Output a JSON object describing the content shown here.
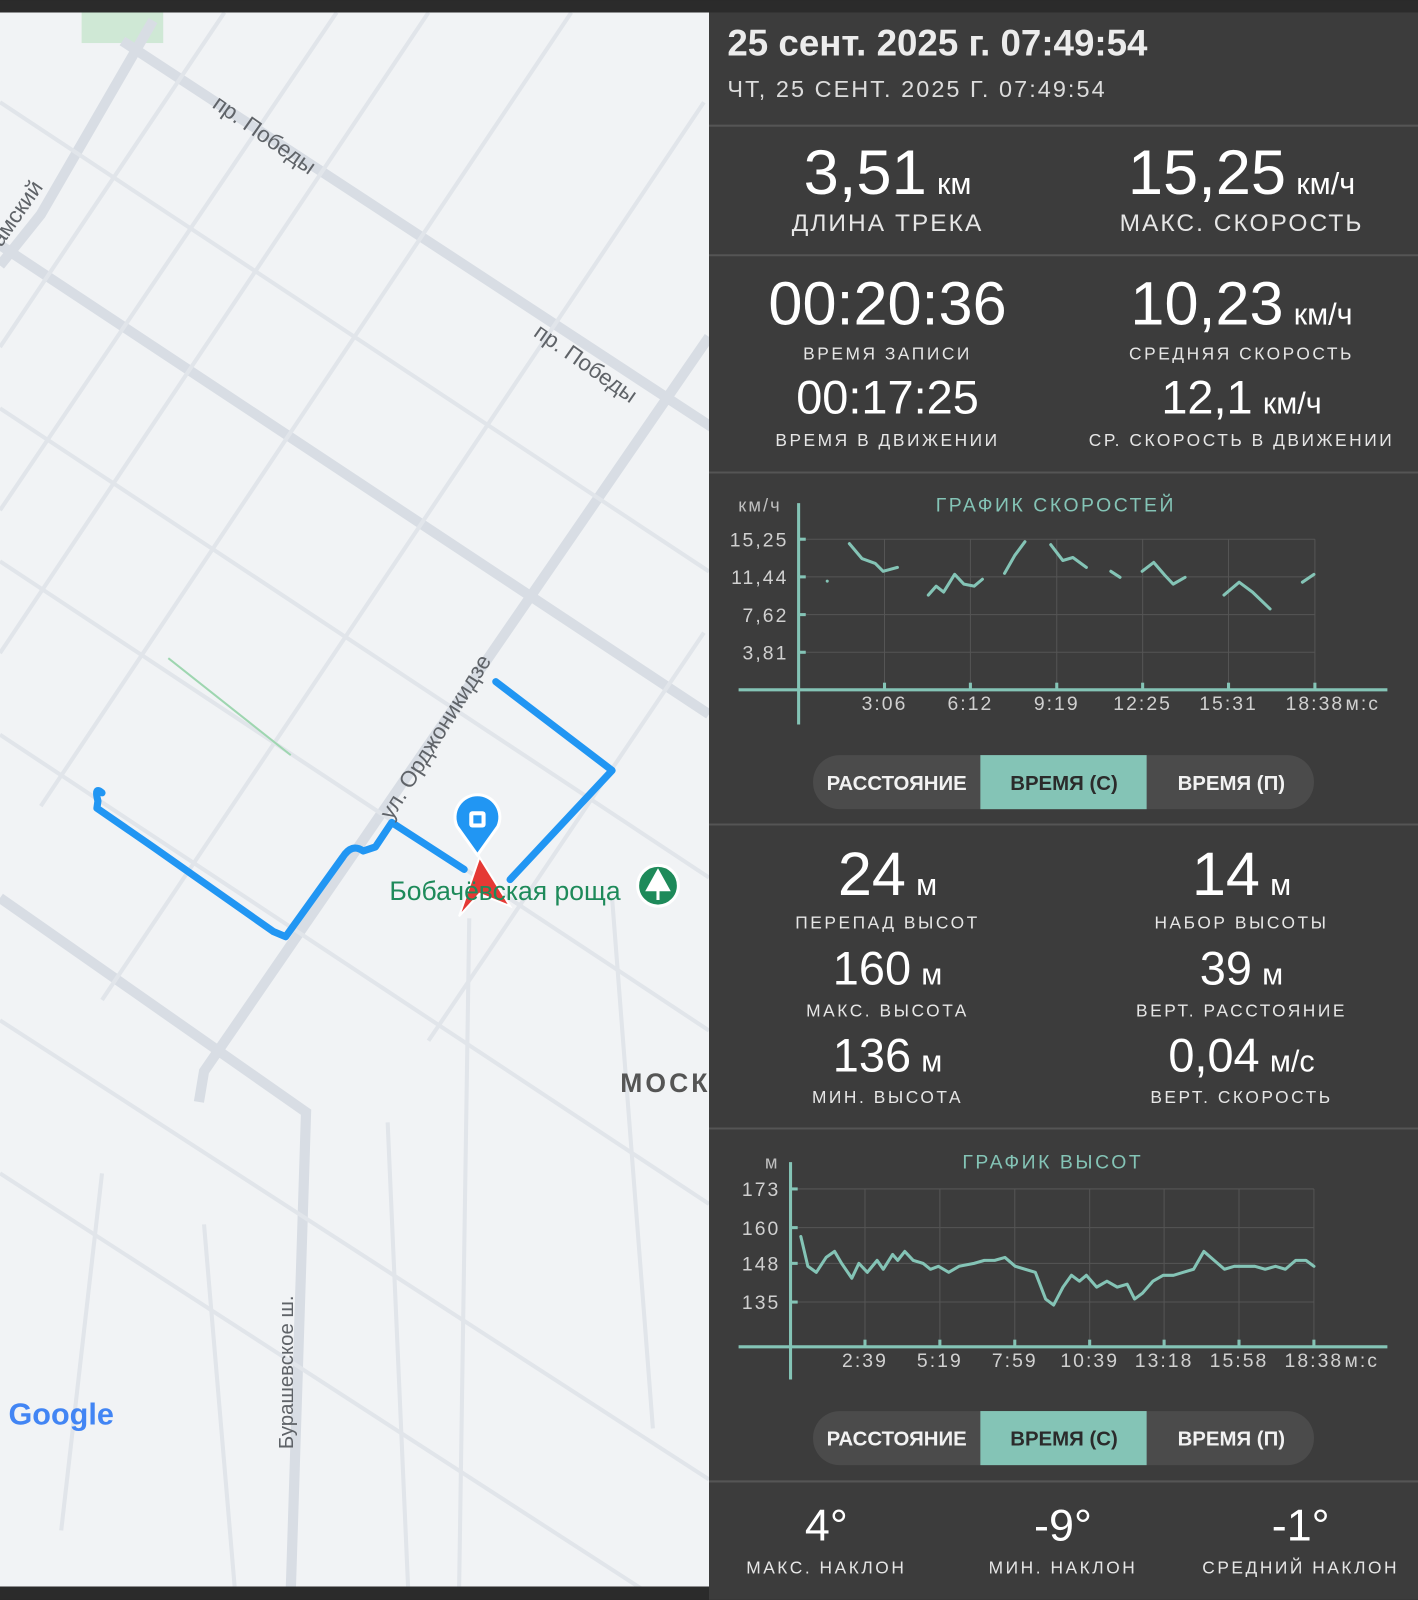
{
  "header": {
    "title": "25 сент. 2025 г. 07:49:54",
    "subtitle": "ЧТ, 25 СЕНТ. 2025 Г. 07:49:54"
  },
  "map": {
    "labels": [
      "пр. Победы",
      "пр. Победы",
      "ул. Орджоникидзе",
      "Бобачёвская роща",
      "МОСК",
      "Бурашевское ш.",
      "амский",
      "Google"
    ]
  },
  "stats": [
    {
      "value": "3,51",
      "unit": "км",
      "label": "ДЛИНА ТРЕКА"
    },
    {
      "value": "15,25",
      "unit": "км/ч",
      "label": "МАКС. СКОРОСТЬ"
    },
    {
      "value": "00:20:36",
      "label": "ВРЕМЯ ЗАПИСИ"
    },
    {
      "value": "10,23",
      "unit": "км/ч",
      "label": "СРЕДНЯЯ СКОРОСТЬ"
    },
    {
      "value": "00:17:25",
      "label": "ВРЕМЯ В ДВИЖЕНИИ"
    },
    {
      "value": "12,1",
      "unit": "км/ч",
      "label": "СР. СКОРОСТЬ В ДВИЖЕНИИ"
    },
    {
      "value": "24",
      "unit": "м",
      "label": "ПЕРЕПАД ВЫСОТ"
    },
    {
      "value": "14",
      "unit": "м",
      "label": "НАБОР ВЫСОТЫ"
    },
    {
      "value": "160",
      "unit": "м",
      "label": "МАКС. ВЫСОТА"
    },
    {
      "value": "39",
      "unit": "м",
      "label": "ВЕРТ. РАССТОЯНИЕ"
    },
    {
      "value": "136",
      "unit": "м",
      "label": "МИН. ВЫСОТА"
    },
    {
      "value": "0,04",
      "unit": "м/с",
      "label": "ВЕРТ. СКОРОСТЬ"
    },
    {
      "value": "4°",
      "label": "МАКС. НАКЛОН"
    },
    {
      "value": "-9°",
      "label": "МИН. НАКЛОН"
    },
    {
      "value": "-1°",
      "label": "СРЕДНИЙ НАКЛОН"
    }
  ],
  "speed_chart": {
    "type": "line",
    "title": "ГРАФИК СКОРОСТЕЙ",
    "y_unit": "км/ч",
    "x_unit": "м:с",
    "color": "#84c4b6",
    "grid": true,
    "xlim": [
      -130,
      1275
    ],
    "ylim": [
      -3.5,
      18.9
    ],
    "xticks": [
      {
        "value": 186,
        "label": "3:06"
      },
      {
        "value": 372,
        "label": "6:12"
      },
      {
        "value": 559,
        "label": "9:19"
      },
      {
        "value": 745,
        "label": "12:25"
      },
      {
        "value": 931,
        "label": "15:31"
      },
      {
        "value": 1118,
        "label": "18:38"
      }
    ],
    "yticks": [
      {
        "value": 3.81,
        "label": "3,81"
      },
      {
        "value": 7.62,
        "label": "7,62"
      },
      {
        "value": 11.44,
        "label": "11,44"
      },
      {
        "value": 15.25,
        "label": "15,25"
      }
    ],
    "x": [
      62,
      null,
      110,
      137,
      166,
      183,
      214,
      null,
      281,
      298,
      314,
      338,
      358,
      380,
      398,
      null,
      446,
      468,
      490,
      null,
      546,
      572,
      594,
      623,
      null,
      676,
      696,
      null,
      744,
      769,
      793,
      811,
      837,
      null,
      921,
      954,
      983,
      1021,
      null,
      1091,
      1116
    ],
    "values": [
      11.0,
      null,
      14.8,
      13.3,
      12.8,
      12.0,
      12.4,
      null,
      9.6,
      10.5,
      9.9,
      11.7,
      10.7,
      10.5,
      11.2,
      null,
      11.8,
      13.6,
      15.0,
      null,
      14.7,
      13.1,
      13.4,
      12.4,
      null,
      12.0,
      11.4,
      null,
      12.0,
      12.9,
      11.6,
      10.7,
      11.4,
      null,
      9.6,
      10.9,
      9.9,
      8.2,
      null,
      10.9,
      11.7
    ]
  },
  "elevation_chart": {
    "type": "line",
    "title": "ГРАФИК ВЫСОТ",
    "y_unit": "м",
    "x_unit": "м:с",
    "color": "#84c4b6",
    "grid": true,
    "xlim": [
      -111,
      1275
    ],
    "ylim": [
      109,
      182
    ],
    "xticks": [
      {
        "value": 159,
        "label": "2:39"
      },
      {
        "value": 319,
        "label": "5:19"
      },
      {
        "value": 479,
        "label": "7:59"
      },
      {
        "value": 639,
        "label": "10:39"
      },
      {
        "value": 798,
        "label": "13:18"
      },
      {
        "value": 958,
        "label": "15:58"
      },
      {
        "value": 1118,
        "label": "18:38"
      }
    ],
    "yticks": [
      135,
      148,
      160,
      173
    ],
    "x": [
      22,
      37,
      55,
      76,
      94,
      109,
      131,
      146,
      164,
      185,
      198,
      218,
      229,
      244,
      262,
      283,
      299,
      316,
      338,
      360,
      392,
      414,
      436,
      458,
      480,
      501,
      523,
      545,
      562,
      582,
      600,
      617,
      632,
      654,
      676,
      698,
      719,
      735,
      752,
      774,
      796,
      818,
      839,
      861,
      883,
      905,
      927,
      948,
      970,
      992,
      1014,
      1036,
      1057,
      1079,
      1101,
      1118
    ],
    "values": [
      157,
      147,
      145,
      150,
      152,
      148,
      143,
      148,
      145,
      149,
      146,
      151,
      149,
      152,
      149,
      148,
      146,
      147,
      145,
      147,
      148,
      149,
      149,
      150,
      147,
      146,
      145,
      136,
      134,
      140,
      144,
      142,
      144,
      140,
      142,
      140,
      141,
      136,
      138,
      142,
      144,
      144,
      145,
      146,
      152,
      149,
      146,
      147,
      147,
      147,
      146,
      147,
      146,
      149,
      149,
      147
    ]
  },
  "tabs": [
    [
      "РАССТОЯНИЕ",
      "ВРЕМЯ (С)",
      "ВРЕМЯ (П)"
    ],
    [
      "РАССТОЯНИЕ",
      "ВРЕМЯ (С)",
      "ВРЕМЯ (П)"
    ]
  ]
}
